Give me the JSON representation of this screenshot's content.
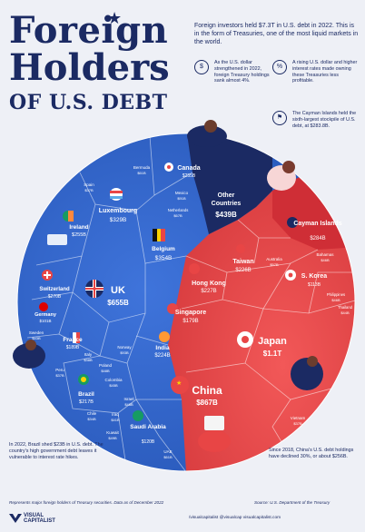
{
  "title": {
    "line1": "Foreign",
    "line2": "Holders",
    "line3": "OF U.S. DEBT"
  },
  "intro": "Foreign investors held $7.3T in U.S. debt in 2022. This is in the form of Treasuries, one of the most liquid markets in the world.",
  "notes": [
    {
      "icon": "$",
      "text": "As the U.S. dollar strengthened in 2022, foreign Treasury holdings sank almost 4%."
    },
    {
      "icon": "%",
      "text": "A rising U.S. dollar and higher interest rates made owning these Treasuries less profitable."
    },
    {
      "icon": "⚑",
      "text": "The Cayman Islands held the sixth-largest stockpile of U.S. debt, at $283.8B."
    }
  ],
  "bottom_left_note": "In 2022, Brazil shed $23B in U.S. debt. The country's high government debt leaves it vulnerable to interest rate hikes.",
  "bottom_right_note": "Since 2018, China's U.S. debt holdings have declined 30%, or about $256B.",
  "footer": {
    "left": "Represents major foreign holders of Treasury securities. Data as of December 2022",
    "right": "Source: U.S. Department of the Treasury",
    "brand_line1": "VISUAL",
    "brand_line2": "CAPITALIST",
    "social": "/visualcapitalist   @visualcap   visualcapitalist.com"
  },
  "colors": {
    "blue": "#2f62c9",
    "red": "#e84545",
    "navy": "#1b2a63",
    "dark_red": "#b8202a"
  },
  "chart_data": {
    "type": "voronoi-treemap",
    "unit": "B",
    "groups": [
      {
        "region": "blue",
        "items": [
          {
            "name": "Canada",
            "value": "$255B"
          },
          {
            "name": "Bermuda",
            "value": "$61B"
          },
          {
            "name": "Luxembourg",
            "value": "$329B"
          },
          {
            "name": "Mexico",
            "value": "$91B"
          },
          {
            "name": "Netherlands",
            "value": "$67B"
          },
          {
            "name": "Spain",
            "value": "$37B"
          },
          {
            "name": "Ireland",
            "value": "$255B"
          },
          {
            "name": "Belgium",
            "value": "$354B"
          },
          {
            "name": "Switzerland",
            "value": "$270B"
          },
          {
            "name": "UK",
            "value": "$655B"
          },
          {
            "name": "Germany",
            "value": "$101B"
          },
          {
            "name": "Sweden",
            "value": "$43B"
          },
          {
            "name": "France",
            "value": "$189B"
          },
          {
            "name": "Norway",
            "value": "$93B"
          },
          {
            "name": "Italy",
            "value": "$38B"
          },
          {
            "name": "Poland",
            "value": "$48B"
          },
          {
            "name": "Peru",
            "value": "$37B"
          },
          {
            "name": "Colombia",
            "value": "$45B"
          },
          {
            "name": "Brazil",
            "value": "$217B"
          },
          {
            "name": "Chile",
            "value": "$34B"
          },
          {
            "name": "Israel",
            "value": "$48B"
          },
          {
            "name": "Iraq",
            "value": "$41B"
          },
          {
            "name": "Kuwait",
            "value": "$49B"
          },
          {
            "name": "Saudi Arabia",
            "value": "$120B"
          },
          {
            "name": "UAE",
            "value": "$61B"
          },
          {
            "name": "India",
            "value": "$224B"
          }
        ]
      },
      {
        "region": "red",
        "items": [
          {
            "name": "Cayman Islands",
            "value": "$284B"
          },
          {
            "name": "Bahamas",
            "value": "$46B"
          },
          {
            "name": "Taiwan",
            "value": "$226B"
          },
          {
            "name": "Australia",
            "value": "$57B"
          },
          {
            "name": "S. Korea",
            "value": "$113B"
          },
          {
            "name": "Philippines",
            "value": "$46B"
          },
          {
            "name": "Thailand",
            "value": "$44B"
          },
          {
            "name": "Hong Kong",
            "value": "$227B"
          },
          {
            "name": "Singapore",
            "value": "$179B"
          },
          {
            "name": "Japan",
            "value": "$1.1T"
          },
          {
            "name": "China",
            "value": "$867B"
          },
          {
            "name": "Vietnam",
            "value": "$37B"
          }
        ]
      },
      {
        "region": "navy",
        "items": [
          {
            "name": "Other Countries",
            "value": "$439B"
          }
        ]
      }
    ]
  }
}
